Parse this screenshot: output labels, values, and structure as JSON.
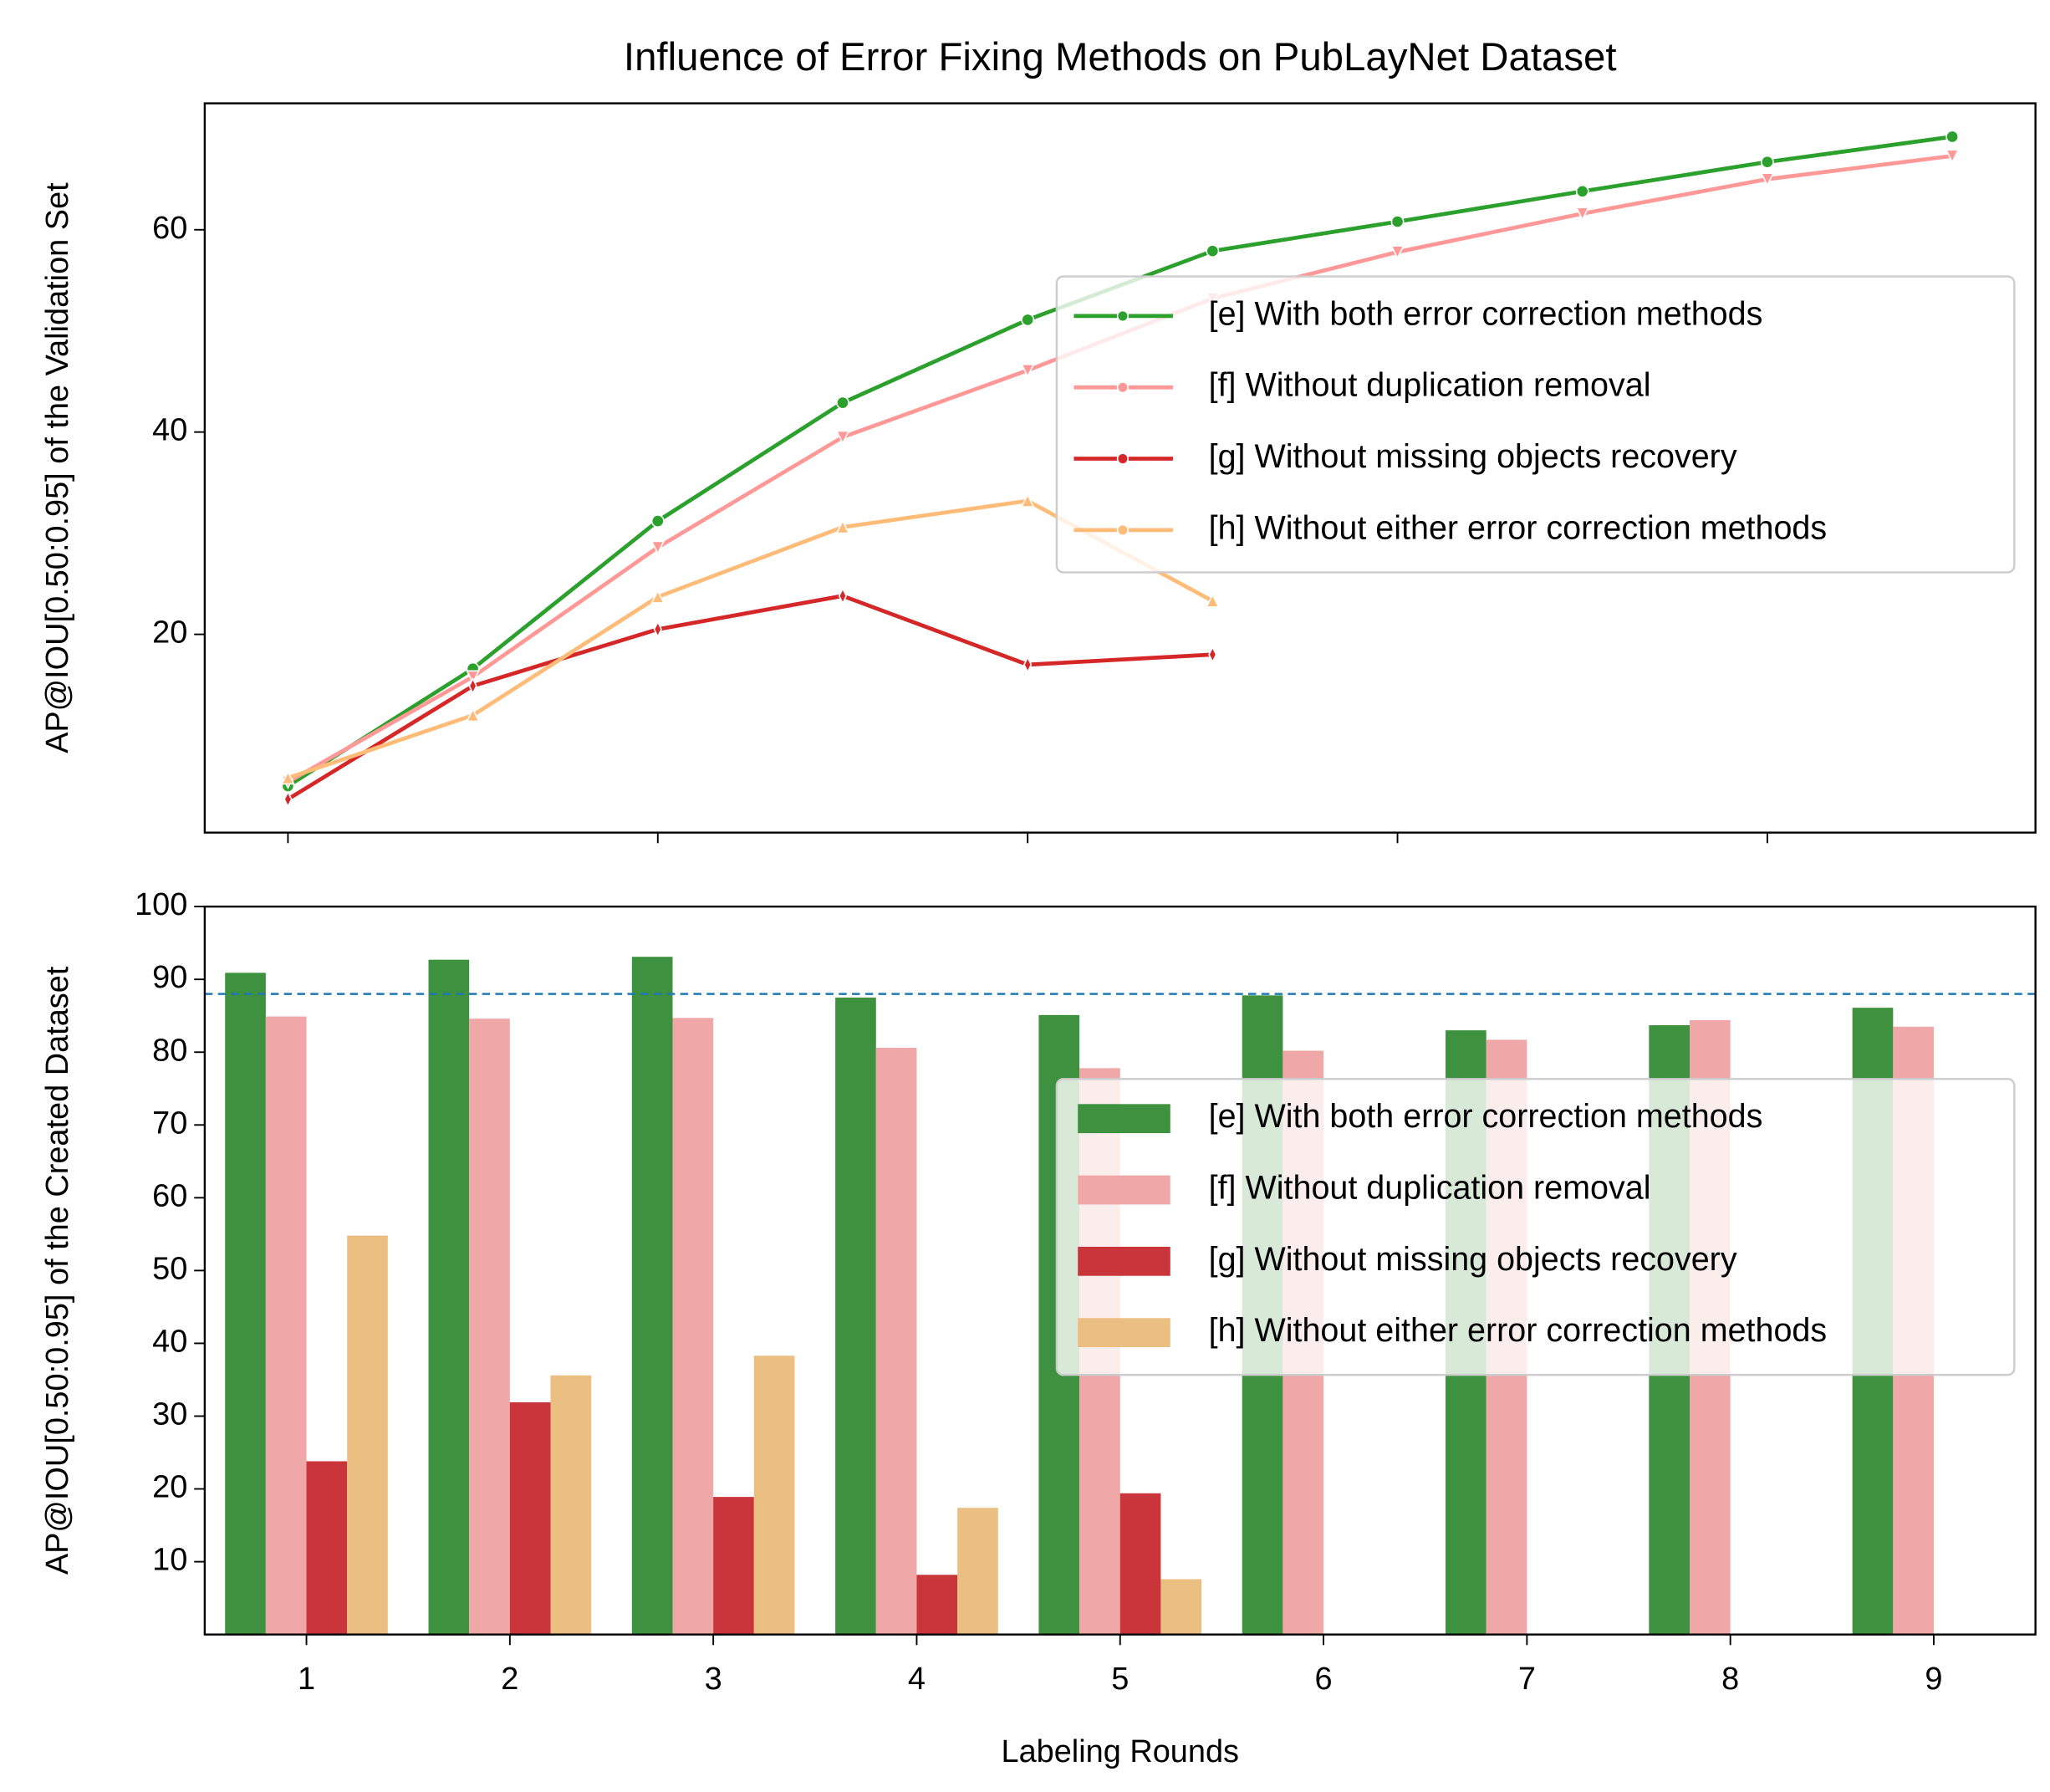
{
  "chart_data": [
    {
      "type": "line",
      "title": "Influence of Error Fixing Methods on PubLayNet Dataset",
      "y_label": "AP@IOU[0.50:0.95] of the Validation Set",
      "x": [
        0,
        1,
        2,
        3,
        4,
        5,
        6,
        7,
        8,
        9
      ],
      "xlim": [
        -0.45,
        9.45
      ],
      "xticks": [
        0,
        2,
        4,
        6,
        8
      ],
      "ylim": [
        0.4,
        72.5
      ],
      "yticks": [
        20,
        40,
        60
      ],
      "legend": "center right",
      "series": [
        {
          "name": "[e] With both error correction methods",
          "color": "#2ca02c",
          "marker": "circle",
          "values": [
            5.0,
            16.6,
            31.2,
            42.9,
            51.1,
            57.9,
            60.8,
            63.8,
            66.7,
            69.2
          ]
        },
        {
          "name": "[f] Without duplication removal",
          "color": "#ff9896",
          "marker": "triangle-down",
          "values": [
            5.4,
            15.8,
            28.6,
            39.5,
            46.1,
            53.2,
            57.8,
            61.6,
            65.0,
            67.3
          ]
        },
        {
          "name": "[g] Without missing objects recovery",
          "color": "#d62728",
          "marker": "diamond",
          "values": [
            3.7,
            14.9,
            20.5,
            23.8,
            17.0,
            18.0,
            null,
            null,
            null,
            null
          ]
        },
        {
          "name": "[h] Without either error correction methods",
          "color": "#ffbb78",
          "marker": "triangle-up",
          "values": [
            5.8,
            12.0,
            23.7,
            30.6,
            33.2,
            23.3,
            null,
            null,
            null,
            null
          ]
        }
      ]
    },
    {
      "type": "bar",
      "y_label": "AP@IOU[0.50:0.95] of the Created Dataset",
      "x_label": "Labeling Rounds",
      "categories": [
        "1",
        "2",
        "3",
        "4",
        "5",
        "6",
        "7",
        "8",
        "9"
      ],
      "ylim": [
        0,
        100
      ],
      "yticks": [
        10,
        20,
        30,
        40,
        50,
        60,
        70,
        80,
        90,
        100
      ],
      "hline": 88.0,
      "hline_color": "#1f77b4",
      "legend": "center right",
      "series": [
        {
          "name": "[e] With both error correction methods",
          "color": "#3e913e",
          "values": [
            90.9,
            92.7,
            93.1,
            87.5,
            85.1,
            87.8,
            83.0,
            83.7,
            86.1
          ]
        },
        {
          "name": "[f] Without duplication removal",
          "color": "#efa7a7",
          "values": [
            84.9,
            84.6,
            84.7,
            80.6,
            77.8,
            80.2,
            81.7,
            84.4,
            83.5
          ]
        },
        {
          "name": "[g] Without missing objects recovery",
          "color": "#c9353a",
          "values": [
            23.8,
            31.9,
            18.9,
            8.2,
            19.4,
            null,
            null,
            null,
            null
          ]
        },
        {
          "name": "[h] Without either error correction methods",
          "color": "#ebbe82",
          "values": [
            54.8,
            35.6,
            38.3,
            17.4,
            7.6,
            null,
            null,
            null,
            null
          ]
        }
      ]
    }
  ]
}
